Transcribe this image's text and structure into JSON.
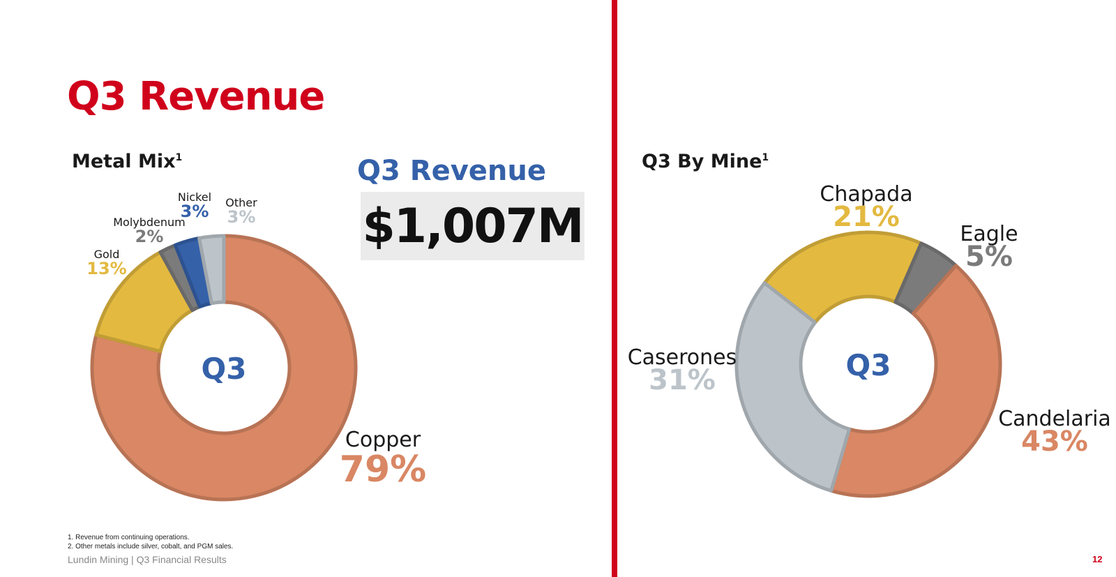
{
  "page": {
    "title": "Q3 Revenue",
    "page_number": "12",
    "footer": "Lundin Mining | Q3 Financial Results",
    "footnotes": [
      "1.  Revenue from continuing operations.",
      "2.  Other metals include silver, cobalt, and PGM sales."
    ]
  },
  "metal_mix": {
    "title": "Metal Mix",
    "title_sup": "1",
    "center_label": "Q3"
  },
  "revenue_callout": {
    "label": "Q3 Revenue",
    "value": "$1,007M"
  },
  "by_mine": {
    "title": "Q3 By Mine",
    "title_sup": "1",
    "center_label": "Q3"
  },
  "chart_data": [
    {
      "type": "pie",
      "title": "Metal Mix",
      "categories": [
        "Copper",
        "Gold",
        "Molybdenum",
        "Nickel",
        "Other"
      ],
      "values": [
        79,
        13,
        2,
        3,
        3
      ],
      "value_labels": [
        "79%",
        "13%",
        "2%",
        "3%",
        "3%"
      ],
      "colors": [
        "#d98764",
        "#e3b940",
        "#7b7b7b",
        "#3561a9",
        "#bcc4ca"
      ],
      "center_label": "Q3"
    },
    {
      "type": "pie",
      "title": "Q3 By Mine",
      "categories": [
        "Chapada",
        "Eagle",
        "Candelaria",
        "Caserones"
      ],
      "values": [
        21,
        5,
        43,
        31
      ],
      "value_labels": [
        "21%",
        "5%",
        "43%",
        "31%"
      ],
      "colors": [
        "#e3b940",
        "#7b7b7b",
        "#d98764",
        "#bcc4ca"
      ],
      "center_label": "Q3"
    }
  ]
}
